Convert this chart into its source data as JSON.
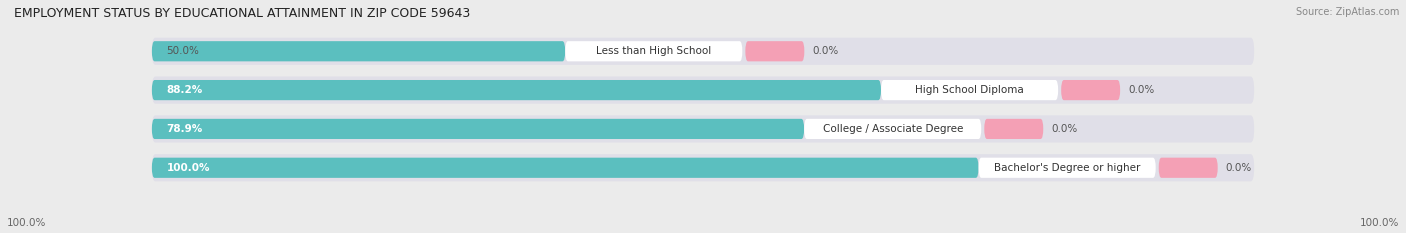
{
  "title": "EMPLOYMENT STATUS BY EDUCATIONAL ATTAINMENT IN ZIP CODE 59643",
  "source": "Source: ZipAtlas.com",
  "categories": [
    "Less than High School",
    "High School Diploma",
    "College / Associate Degree",
    "Bachelor's Degree or higher"
  ],
  "labor_force_pct": [
    50.0,
    88.2,
    78.9,
    100.0
  ],
  "unemployed_pct": [
    0.0,
    0.0,
    0.0,
    0.0
  ],
  "labor_force_color": "#5bbfbf",
  "unemployed_color": "#f4a0b5",
  "background_color": "#ebebeb",
  "bar_bg_color": "#e0dfe8",
  "row_bg_color": "#f5f5f8",
  "title_fontsize": 9,
  "source_fontsize": 7,
  "label_fontsize": 7.5,
  "bar_label_fontsize": 7.5,
  "legend_fontsize": 7.5,
  "bottom_left_label": "100.0%",
  "bottom_right_label": "100.0%",
  "lf_label_color": "#555555",
  "un_label_color": "#555555",
  "lf_inside_label_color": "#ffffff",
  "cat_label_color": "#333333"
}
